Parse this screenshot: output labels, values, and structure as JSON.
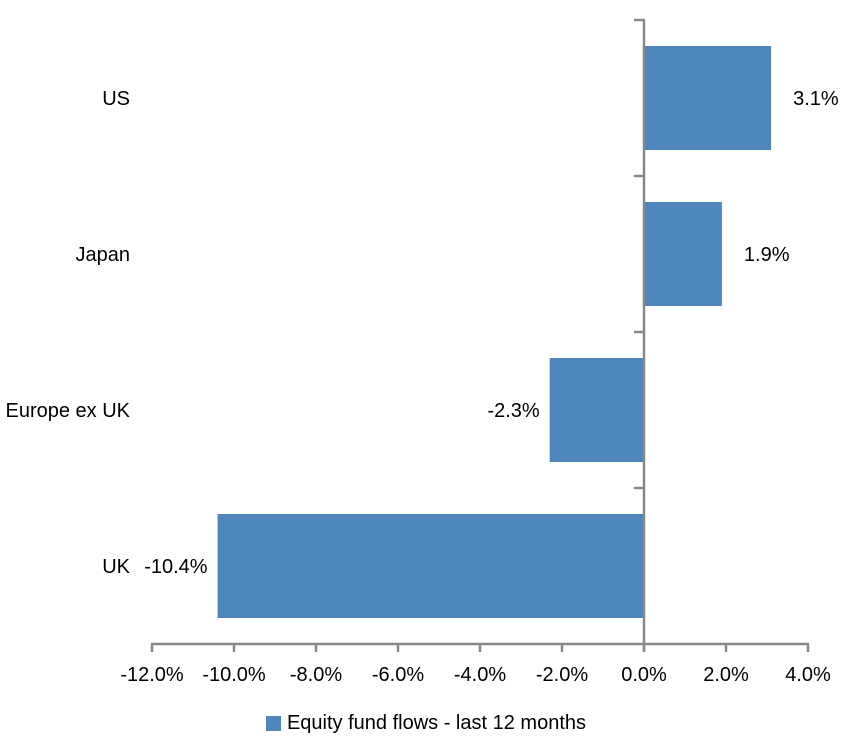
{
  "chart_data": {
    "type": "bar",
    "orientation": "horizontal",
    "title": "",
    "categories": [
      "US",
      "Japan",
      "Europe ex UK",
      "UK"
    ],
    "values": [
      3.1,
      1.9,
      -2.3,
      -10.4
    ],
    "data_labels": [
      "3.1%",
      "1.9%",
      "-2.3%",
      "-10.4%"
    ],
    "xlim": [
      -12,
      4
    ],
    "x_ticks": [
      -12,
      -10,
      -8,
      -6,
      -4,
      -2,
      0,
      2,
      4
    ],
    "x_tick_labels": [
      "-12.0%",
      "-10.0%",
      "-8.0%",
      "-6.0%",
      "-4.0%",
      "-2.0%",
      "0.0%",
      "2.0%",
      "4.0%"
    ],
    "grid": false,
    "legend": {
      "label": "Equity fund flows - last 12 months",
      "position": "bottom"
    },
    "colors": {
      "bar": "#4E87BD",
      "axis": "#888888",
      "text": "#000000",
      "background": "#FFFFFF"
    }
  }
}
